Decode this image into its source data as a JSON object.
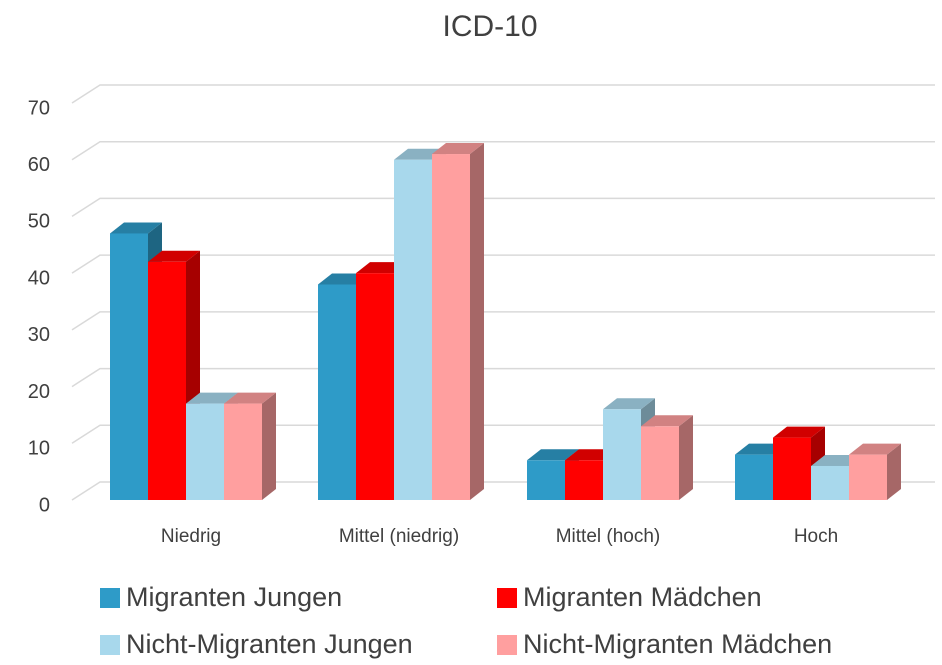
{
  "chart_data": {
    "type": "bar3d",
    "title": "ICD-10",
    "categories": [
      "Niedrig",
      "Mittel (niedrig)",
      "Mittel (hoch)",
      "Hoch"
    ],
    "series": [
      {
        "name": "Migranten Jungen",
        "color": "#2e9bc8",
        "values": [
          47,
          38,
          7,
          8
        ]
      },
      {
        "name": "Migranten Mädchen",
        "color": "#ff0000",
        "values": [
          42,
          40,
          7,
          11
        ]
      },
      {
        "name": "Nicht-Migranten Jungen",
        "color": "#a8d8ec",
        "values": [
          17,
          60,
          16,
          6
        ]
      },
      {
        "name": "Nicht-Migranten Mädchen",
        "color": "#ff9f9f",
        "values": [
          17,
          61,
          13,
          8
        ]
      }
    ],
    "ylim": [
      0,
      70
    ],
    "yticks": [
      0,
      10,
      20,
      30,
      40,
      50,
      60,
      70
    ],
    "grid": true,
    "legend": "bottom"
  }
}
